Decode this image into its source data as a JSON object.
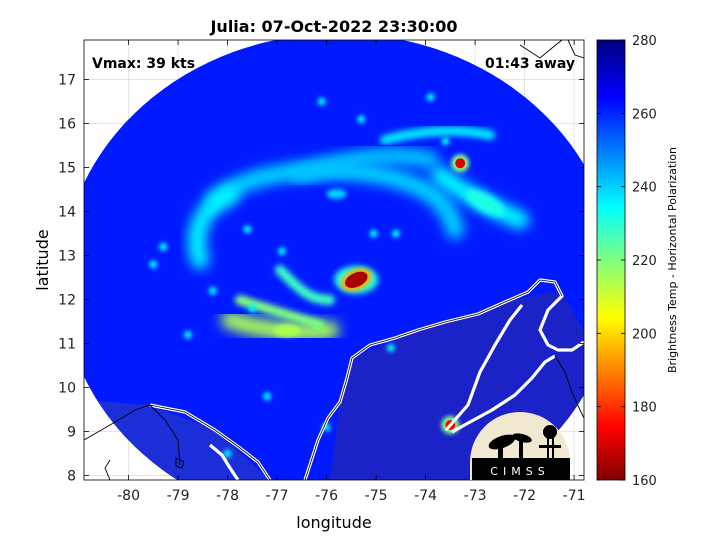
{
  "title": "Julia: 07-Oct-2022 23:30:00",
  "vmax_label": "Vmax: 39 kts",
  "away_label": "01:43 away",
  "xlabel": "longitude",
  "ylabel": "latitude",
  "colorbar_label": "Brightness Temp - Horizontal Polarization",
  "logo_text": "CIMSS",
  "chart_data": {
    "type": "heatmap",
    "title": "Julia: 07-Oct-2022 23:30:00",
    "xlabel": "longitude",
    "ylabel": "latitude",
    "xlim": [
      -80.9,
      -70.8
    ],
    "ylim": [
      7.9,
      17.9
    ],
    "x_ticks": [
      -80,
      -79,
      -78,
      -77,
      -76,
      -75,
      -74,
      -73,
      -72,
      -71
    ],
    "y_ticks": [
      8,
      9,
      10,
      11,
      12,
      13,
      14,
      15,
      16,
      17
    ],
    "grid": true,
    "colorbar": {
      "label": "Brightness Temp - Horizontal Polarization",
      "range": [
        160,
        280
      ],
      "ticks": [
        160,
        180,
        200,
        220,
        240,
        260,
        280
      ],
      "colormap": "jet"
    },
    "swath": {
      "center_lon": -75.75,
      "center_lat": 12.45,
      "radius_deg": 5.6
    },
    "background_tb": 262,
    "features": [
      {
        "name": "core",
        "lon": -75.4,
        "lat": 12.45,
        "tb": 165
      },
      {
        "name": "northeast-spot",
        "lon": -73.3,
        "lat": 15.1,
        "tb": 172
      },
      {
        "name": "coastal-spot",
        "lon": -73.5,
        "lat": 9.15,
        "tb": 175
      },
      {
        "name": "southwest-band",
        "lon": -76.8,
        "lat": 11.3,
        "tb": 215
      },
      {
        "name": "northeast-band",
        "lon": -72.8,
        "lat": 14.2,
        "tb": 232
      },
      {
        "name": "ring",
        "lon": -75.8,
        "lat": 14.4,
        "tb": 240
      }
    ],
    "annotations": [
      "Vmax: 39 kts",
      "01:43 away"
    ]
  },
  "colors": {
    "background": "#2636e8",
    "outside": "#ffffff",
    "land_lines": "#ffffff",
    "coast_lines": "#000000",
    "grid": "#d9d9d9",
    "logo_bg": "#f1e8d2"
  }
}
